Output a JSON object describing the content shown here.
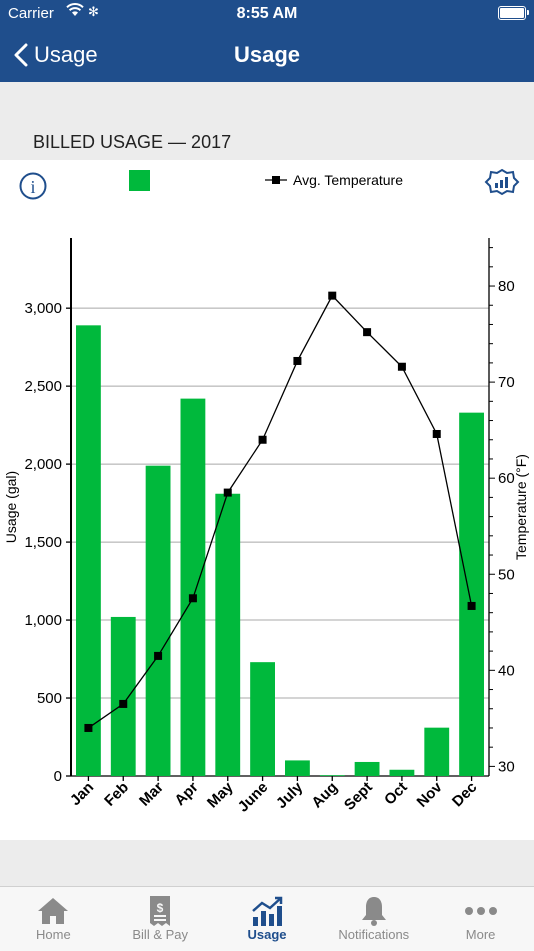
{
  "status_bar": {
    "carrier": "Carrier",
    "time": "8:55 AM"
  },
  "nav": {
    "back_label": "Usage",
    "title": "Usage"
  },
  "section": {
    "title": "BILLED USAGE — 2017"
  },
  "legend": {
    "temperature_label": "Avg. Temperature"
  },
  "colors": {
    "header": "#1f4e8c",
    "bar": "#00b93c",
    "active_tab": "#1f4e8c",
    "inactive_tab": "#8a8a8a"
  },
  "chart_data": {
    "type": "bar",
    "categories": [
      "Jan",
      "Feb",
      "Mar",
      "Apr",
      "May",
      "June",
      "July",
      "Aug",
      "Sept",
      "Oct",
      "Nov",
      "Dec"
    ],
    "series": [
      {
        "values": [
          2890,
          1020,
          1990,
          2420,
          1810,
          730,
          100,
          5,
          90,
          40,
          310,
          2330
        ],
        "axis": "left",
        "kind": "bar"
      },
      {
        "name": "Avg. Temperature",
        "values": [
          34,
          36.5,
          41.5,
          47.5,
          58.5,
          64,
          72.2,
          79,
          75.2,
          71.6,
          64.6,
          46.7
        ],
        "axis": "right",
        "kind": "line"
      }
    ],
    "ylabel": "Usage (gal)",
    "ylabel_right": "Temperature (°F)",
    "ylim": [
      0,
      3450
    ],
    "yticks": [
      0,
      500,
      1000,
      1500,
      2000,
      2500,
      3000
    ],
    "ytick_labels": [
      "0",
      "500",
      "1,000",
      "1,500",
      "2,000",
      "2,500",
      "3,000"
    ],
    "ylim_right": [
      29,
      85
    ],
    "yticks_right": [
      30,
      40,
      50,
      60,
      70,
      80
    ],
    "grid": true,
    "legend_position": "top"
  },
  "tabs": [
    {
      "label": "Home",
      "icon": "home-icon",
      "active": false
    },
    {
      "label": "Bill & Pay",
      "icon": "bill-icon",
      "active": false
    },
    {
      "label": "Usage",
      "icon": "usage-chart-icon",
      "active": true
    },
    {
      "label": "Notifications",
      "icon": "bell-icon",
      "active": false
    },
    {
      "label": "More",
      "icon": "more-icon",
      "active": false
    }
  ]
}
